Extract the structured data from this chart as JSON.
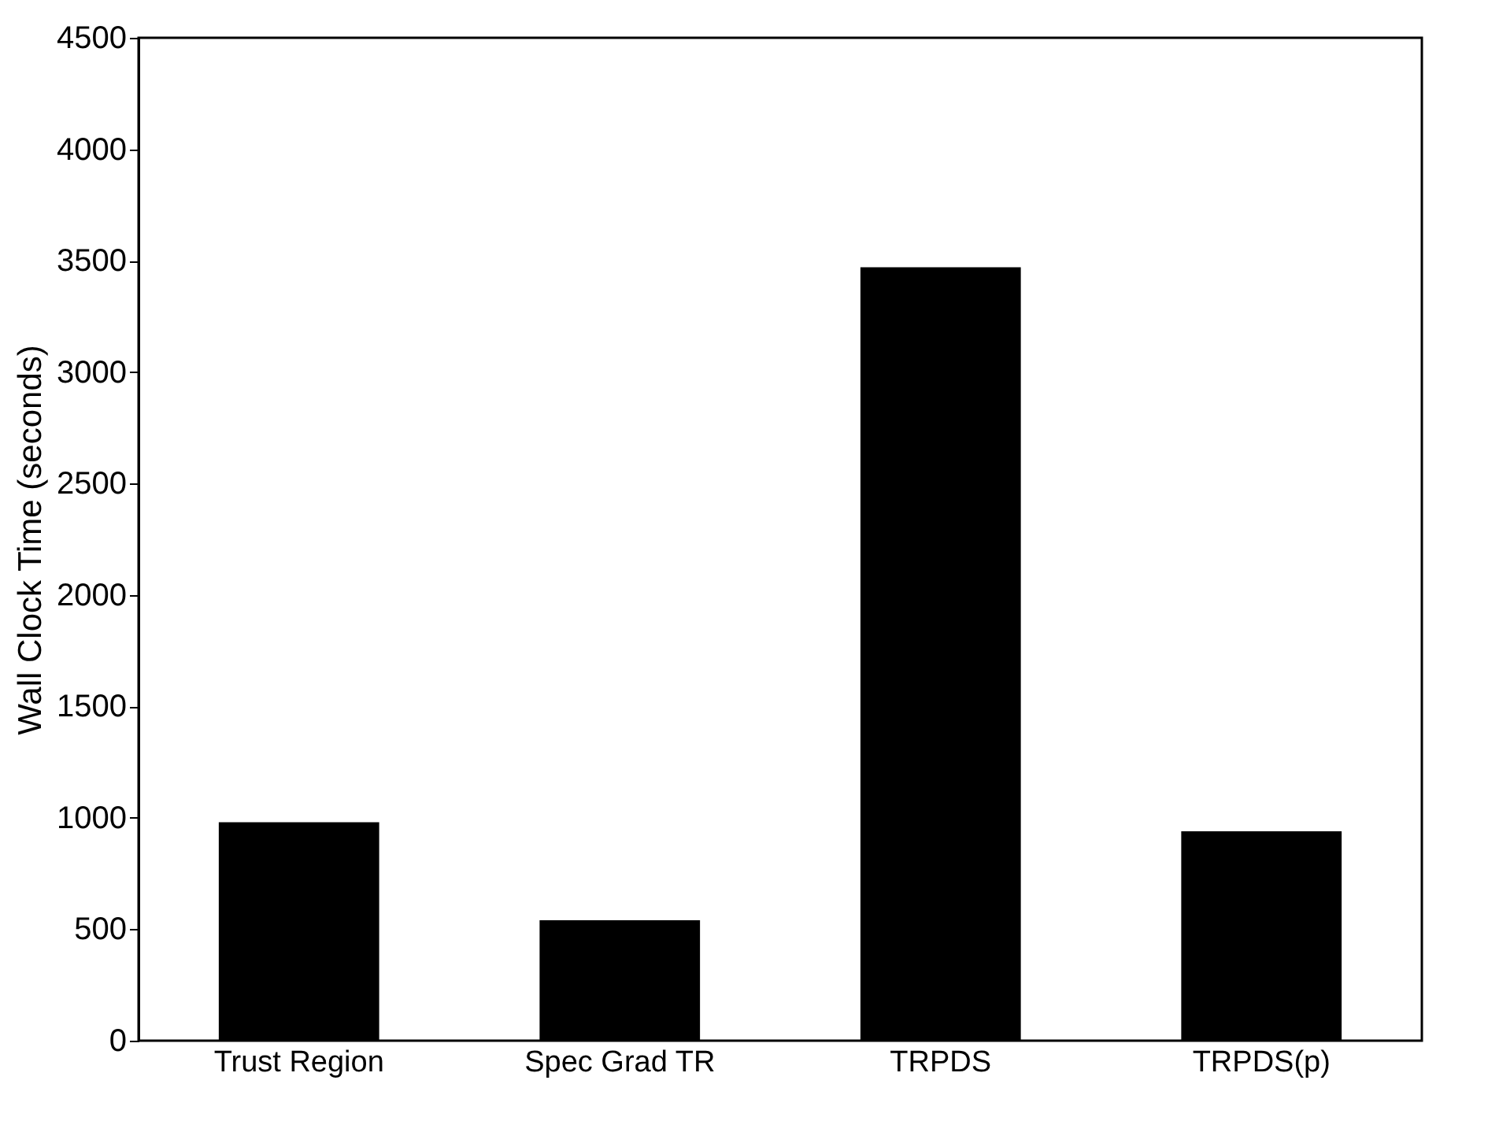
{
  "chart_data": {
    "type": "bar",
    "ylabel": "Wall Clock Time (seconds)",
    "categories": [
      "Trust Region",
      "Spec Grad TR",
      "TRPDS",
      "TRPDS(p)"
    ],
    "values": [
      980,
      540,
      3470,
      940
    ],
    "color": "#000000",
    "ylim": [
      0,
      4500
    ],
    "yticks": [
      0,
      500,
      1000,
      1500,
      2000,
      2500,
      3000,
      3500,
      4000,
      4500
    ],
    "grid": false
  }
}
